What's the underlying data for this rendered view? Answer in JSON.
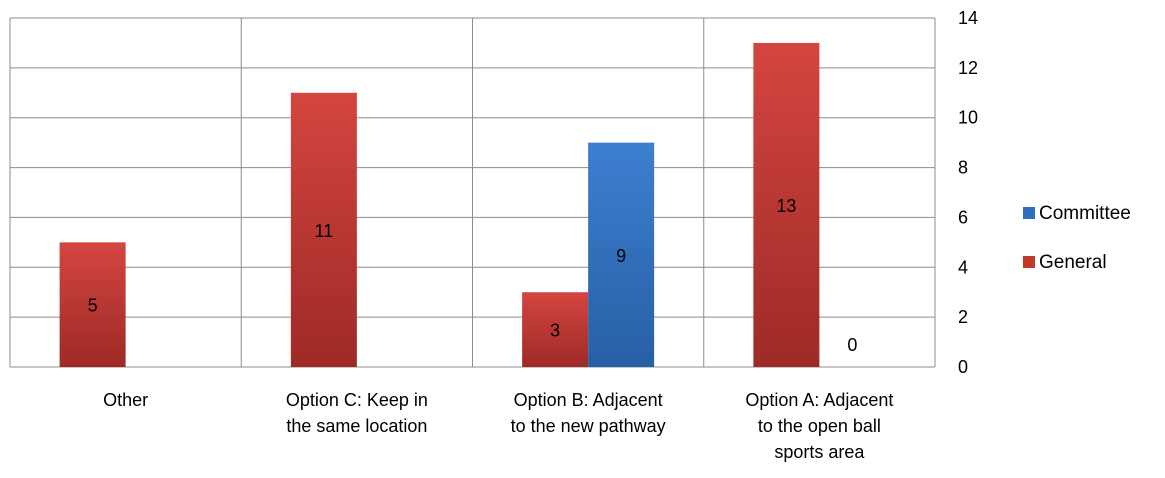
{
  "chart_data": {
    "type": "bar",
    "categories": [
      [
        "Other"
      ],
      [
        "Option C: Keep in",
        "the same location"
      ],
      [
        "Option B: Adjacent",
        "to the new pathway"
      ],
      [
        "Option A: Adjacent",
        "to the open ball",
        "sports area"
      ]
    ],
    "series": [
      {
        "name": "General",
        "values": [
          5,
          11,
          3,
          13
        ],
        "color": "#c0392b"
      },
      {
        "name": "Committee",
        "values": [
          null,
          null,
          9,
          0
        ],
        "color": "#2e6fc0"
      }
    ],
    "ylim": [
      0,
      14
    ],
    "yticks": [
      0,
      2,
      4,
      6,
      8,
      10,
      12,
      14
    ],
    "y_axis_side": "right",
    "grid": true,
    "legend_position": "right",
    "legend_order": [
      "Committee",
      "General"
    ],
    "title": "",
    "xlabel": "",
    "ylabel": ""
  }
}
